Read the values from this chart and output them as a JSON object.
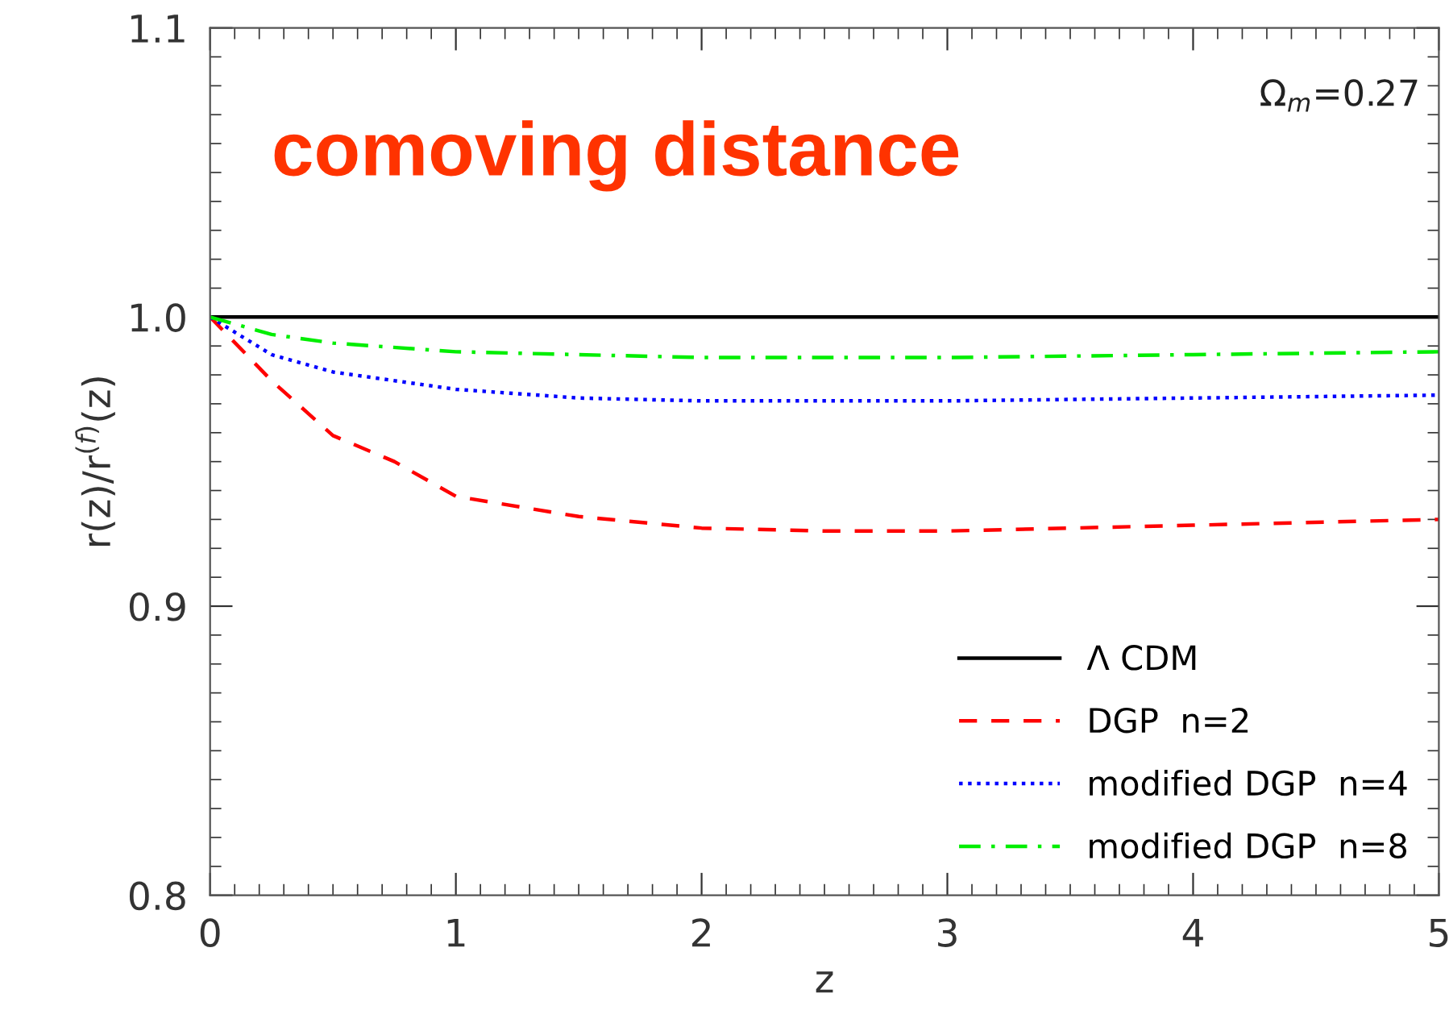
{
  "chart_data": {
    "type": "line",
    "title": "comoving distance",
    "xlabel": "z",
    "ylabel": "r(z)/r$^{(f)}$(z)",
    "annotations": [
      "Ω$_{m}$=0.27"
    ],
    "xlim": [
      0,
      5
    ],
    "ylim": [
      0.8,
      1.1
    ],
    "xticks": [
      0,
      1,
      2,
      3,
      4,
      5
    ],
    "yticks": [
      {
        "value": 0.8,
        "label": "0.8"
      },
      {
        "value": 0.9,
        "label": "0.9"
      },
      {
        "value": 1.0,
        "label": "1.0"
      },
      {
        "value": 1.1,
        "label": "1.1"
      }
    ],
    "grid": false,
    "legend": "bottom right",
    "marker": "none",
    "series": [
      {
        "name": "Λ CDM",
        "color": "#000000",
        "line_style": "solid",
        "x": [
          0,
          5
        ],
        "values": [
          1.0,
          1.0
        ]
      },
      {
        "name": "DGP  n=2",
        "color": "#ff0000",
        "line_style": "dashed",
        "x": [
          0,
          0.25,
          0.5,
          0.75,
          1,
          1.5,
          2,
          2.5,
          3,
          4,
          5
        ],
        "values": [
          1.0,
          0.978,
          0.959,
          0.95,
          0.938,
          0.931,
          0.927,
          0.926,
          0.926,
          0.928,
          0.93
        ]
      },
      {
        "name": "modified DGP  n=4",
        "color": "#0000ff",
        "line_style": "dotted",
        "x": [
          0,
          0.25,
          0.5,
          1,
          1.5,
          2,
          3,
          4,
          5
        ],
        "values": [
          1.0,
          0.987,
          0.981,
          0.975,
          0.972,
          0.971,
          0.971,
          0.972,
          0.973
        ]
      },
      {
        "name": "modified DGP  n=8",
        "color": "#00ee00",
        "line_style": "dashdot",
        "x": [
          0,
          0.25,
          0.5,
          1,
          1.5,
          2,
          3,
          4,
          5
        ],
        "values": [
          1.0,
          0.994,
          0.991,
          0.988,
          0.987,
          0.986,
          0.986,
          0.987,
          0.988
        ]
      }
    ]
  }
}
